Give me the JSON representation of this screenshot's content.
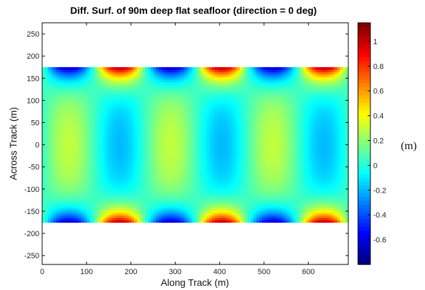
{
  "chart_data": {
    "type": "heatmap",
    "title": "Diff. Surf. of 90m deep flat seafloor (direction = 0 deg)",
    "xlabel": "Along Track (m)",
    "ylabel": "Across Track (m)",
    "colorbar_label": "(m)",
    "xlim": [
      0,
      690
    ],
    "ylim": [
      -270,
      275
    ],
    "data_x_range": [
      0,
      690
    ],
    "data_y_range": [
      -175,
      175
    ],
    "x_ticks": [
      0,
      100,
      200,
      300,
      400,
      500,
      600
    ],
    "y_ticks": [
      -250,
      -200,
      -150,
      -100,
      -50,
      0,
      50,
      100,
      150,
      200,
      250
    ],
    "clim": [
      -0.8,
      1.15
    ],
    "colorbar_ticks": [
      -0.6,
      -0.4,
      -0.2,
      0,
      0.2,
      0.4,
      0.6,
      0.8,
      1
    ],
    "colormap": "jet",
    "pattern": {
      "period_along_track_m": 230,
      "phase_offset_m": 58,
      "across_track_mode": "cos(pi*y/175)",
      "edge_amplitude_m": 1.05,
      "center_amplitude_m": -0.25,
      "mean_offset_m": 0.0,
      "peaks": [
        {
          "x": 60,
          "edge_value": -0.75,
          "center_value": 0.22
        },
        {
          "x": 175,
          "edge_value": 1.05,
          "center_value": -0.28
        },
        {
          "x": 290,
          "edge_value": -0.75,
          "center_value": 0.22
        },
        {
          "x": 405,
          "edge_value": 1.05,
          "center_value": -0.28
        },
        {
          "x": 520,
          "edge_value": -0.75,
          "center_value": 0.22
        },
        {
          "x": 635,
          "edge_value": 1.05,
          "center_value": -0.28
        }
      ]
    }
  }
}
